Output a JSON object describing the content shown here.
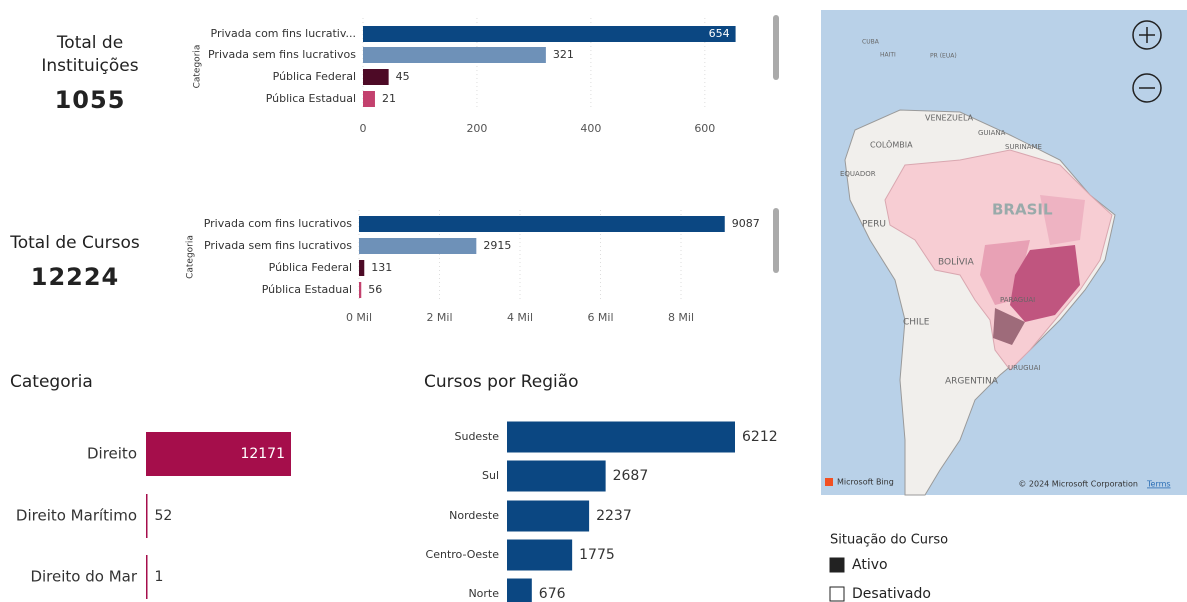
{
  "cards": [
    {
      "label": "Total de Instituições",
      "value": 1055
    },
    {
      "label": "Total de Cursos",
      "value": 12224
    }
  ],
  "chart_data": [
    {
      "type": "bar",
      "orientation": "horizontal",
      "axis_title": "Categoria",
      "categories": [
        "Privada com fins lucrativ...",
        "Privada sem fins lucrativos",
        "Pública Federal",
        "Pública Estadual"
      ],
      "values": [
        654,
        321,
        45,
        21
      ],
      "colors": [
        "#0b4782",
        "#6e91b8",
        "#4d0a26",
        "#c3416e"
      ],
      "xlim": [
        0,
        660
      ],
      "xticks": [
        0,
        200,
        400,
        600
      ],
      "grid": true
    },
    {
      "type": "bar",
      "orientation": "horizontal",
      "axis_title": "Categoria",
      "categories": [
        "Privada com fins lucrativos",
        "Privada sem fins lucrativos",
        "Pública Federal",
        "Pública Estadual"
      ],
      "values": [
        9087,
        2915,
        131,
        56
      ],
      "colors": [
        "#0b4782",
        "#6e91b8",
        "#4d0a26",
        "#c3416e"
      ],
      "xlim": [
        0,
        10000
      ],
      "xticks": [
        {
          "value": 0,
          "label": "0 Mil"
        },
        {
          "value": 2000,
          "label": "2 Mil"
        },
        {
          "value": 4000,
          "label": "4 Mil"
        },
        {
          "value": 6000,
          "label": "6 Mil"
        },
        {
          "value": 8000,
          "label": "8 Mil"
        }
      ],
      "grid": true
    },
    {
      "type": "bar",
      "orientation": "horizontal",
      "title": "Categoria",
      "categories": [
        "Direito",
        "Direito Marítimo",
        "Direito do Mar"
      ],
      "values": [
        12171,
        52,
        1
      ],
      "color": "#a50e4b"
    },
    {
      "type": "bar",
      "orientation": "horizontal",
      "title": "Cursos por Região",
      "categories": [
        "Sudeste",
        "Sul",
        "Nordeste",
        "Centro-Oeste",
        "Norte"
      ],
      "values": [
        6212,
        2687,
        2237,
        1775,
        676
      ],
      "color": "#0b4782"
    }
  ],
  "map": {
    "labels": [
      "BRASIL",
      "PERU",
      "BOLÍVIA",
      "CHILE",
      "ARGENTINA",
      "COLÔMBIA",
      "VENEZUELA",
      "EQUADOR",
      "PARAGUAI",
      "URUGUAI",
      "GUIANA",
      "SURINAME",
      "CUBA",
      "HAITI",
      "PR (EUA)"
    ],
    "attribution": "Microsoft Bing",
    "copyright": "© 2024 Microsoft Corporation",
    "terms": "Terms"
  },
  "slicer": {
    "title": "Situação do Curso",
    "items": [
      {
        "label": "Ativo",
        "checked": true
      },
      {
        "label": "Desativado",
        "checked": false
      }
    ]
  }
}
